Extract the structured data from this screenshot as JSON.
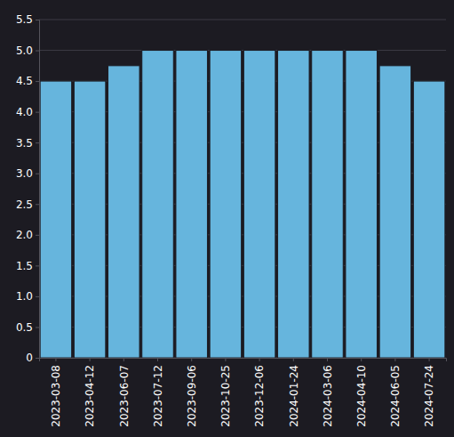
{
  "chart_data": {
    "type": "bar",
    "categories": [
      "2023-03-08",
      "2023-04-12",
      "2023-06-07",
      "2023-07-12",
      "2023-09-06",
      "2023-10-25",
      "2023-12-06",
      "2024-01-24",
      "2024-03-06",
      "2024-04-10",
      "2024-06-05",
      "2024-07-24"
    ],
    "values": [
      4.5,
      4.5,
      4.75,
      5,
      5,
      5,
      5,
      5,
      5,
      5,
      4.75,
      4.5
    ],
    "color": "#66b5dd",
    "ylim": [
      0,
      5.5
    ],
    "yticks": [
      0,
      0.5,
      {
        "value": 1,
        "label": "1.0"
      },
      1.5,
      {
        "value": 2,
        "label": "2.0"
      },
      2.5,
      {
        "value": 3,
        "label": "3.0"
      },
      3.5,
      {
        "value": 4,
        "label": "4.0"
      },
      4.5,
      {
        "value": 5,
        "label": "5.0"
      },
      5.5
    ],
    "grid": true
  }
}
